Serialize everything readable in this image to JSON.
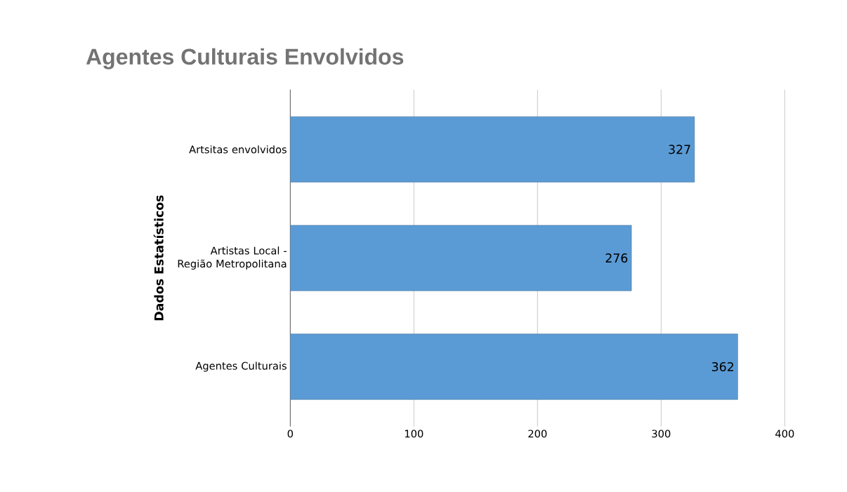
{
  "chart_data": {
    "type": "bar",
    "orientation": "horizontal",
    "title": "Agentes Culturais Envolvidos",
    "ylabel": "Dados Estatísticos",
    "categories": [
      "Artsitas envolvidos",
      "Artistas Local - Região Metropolitana",
      "Agentes Culturais"
    ],
    "values": [
      327,
      276,
      362
    ],
    "color": "#5b9bd5",
    "xlim": [
      0,
      400
    ],
    "xticks": [
      0,
      100,
      200,
      300,
      400
    ],
    "grid": "x",
    "data_labels": true
  }
}
